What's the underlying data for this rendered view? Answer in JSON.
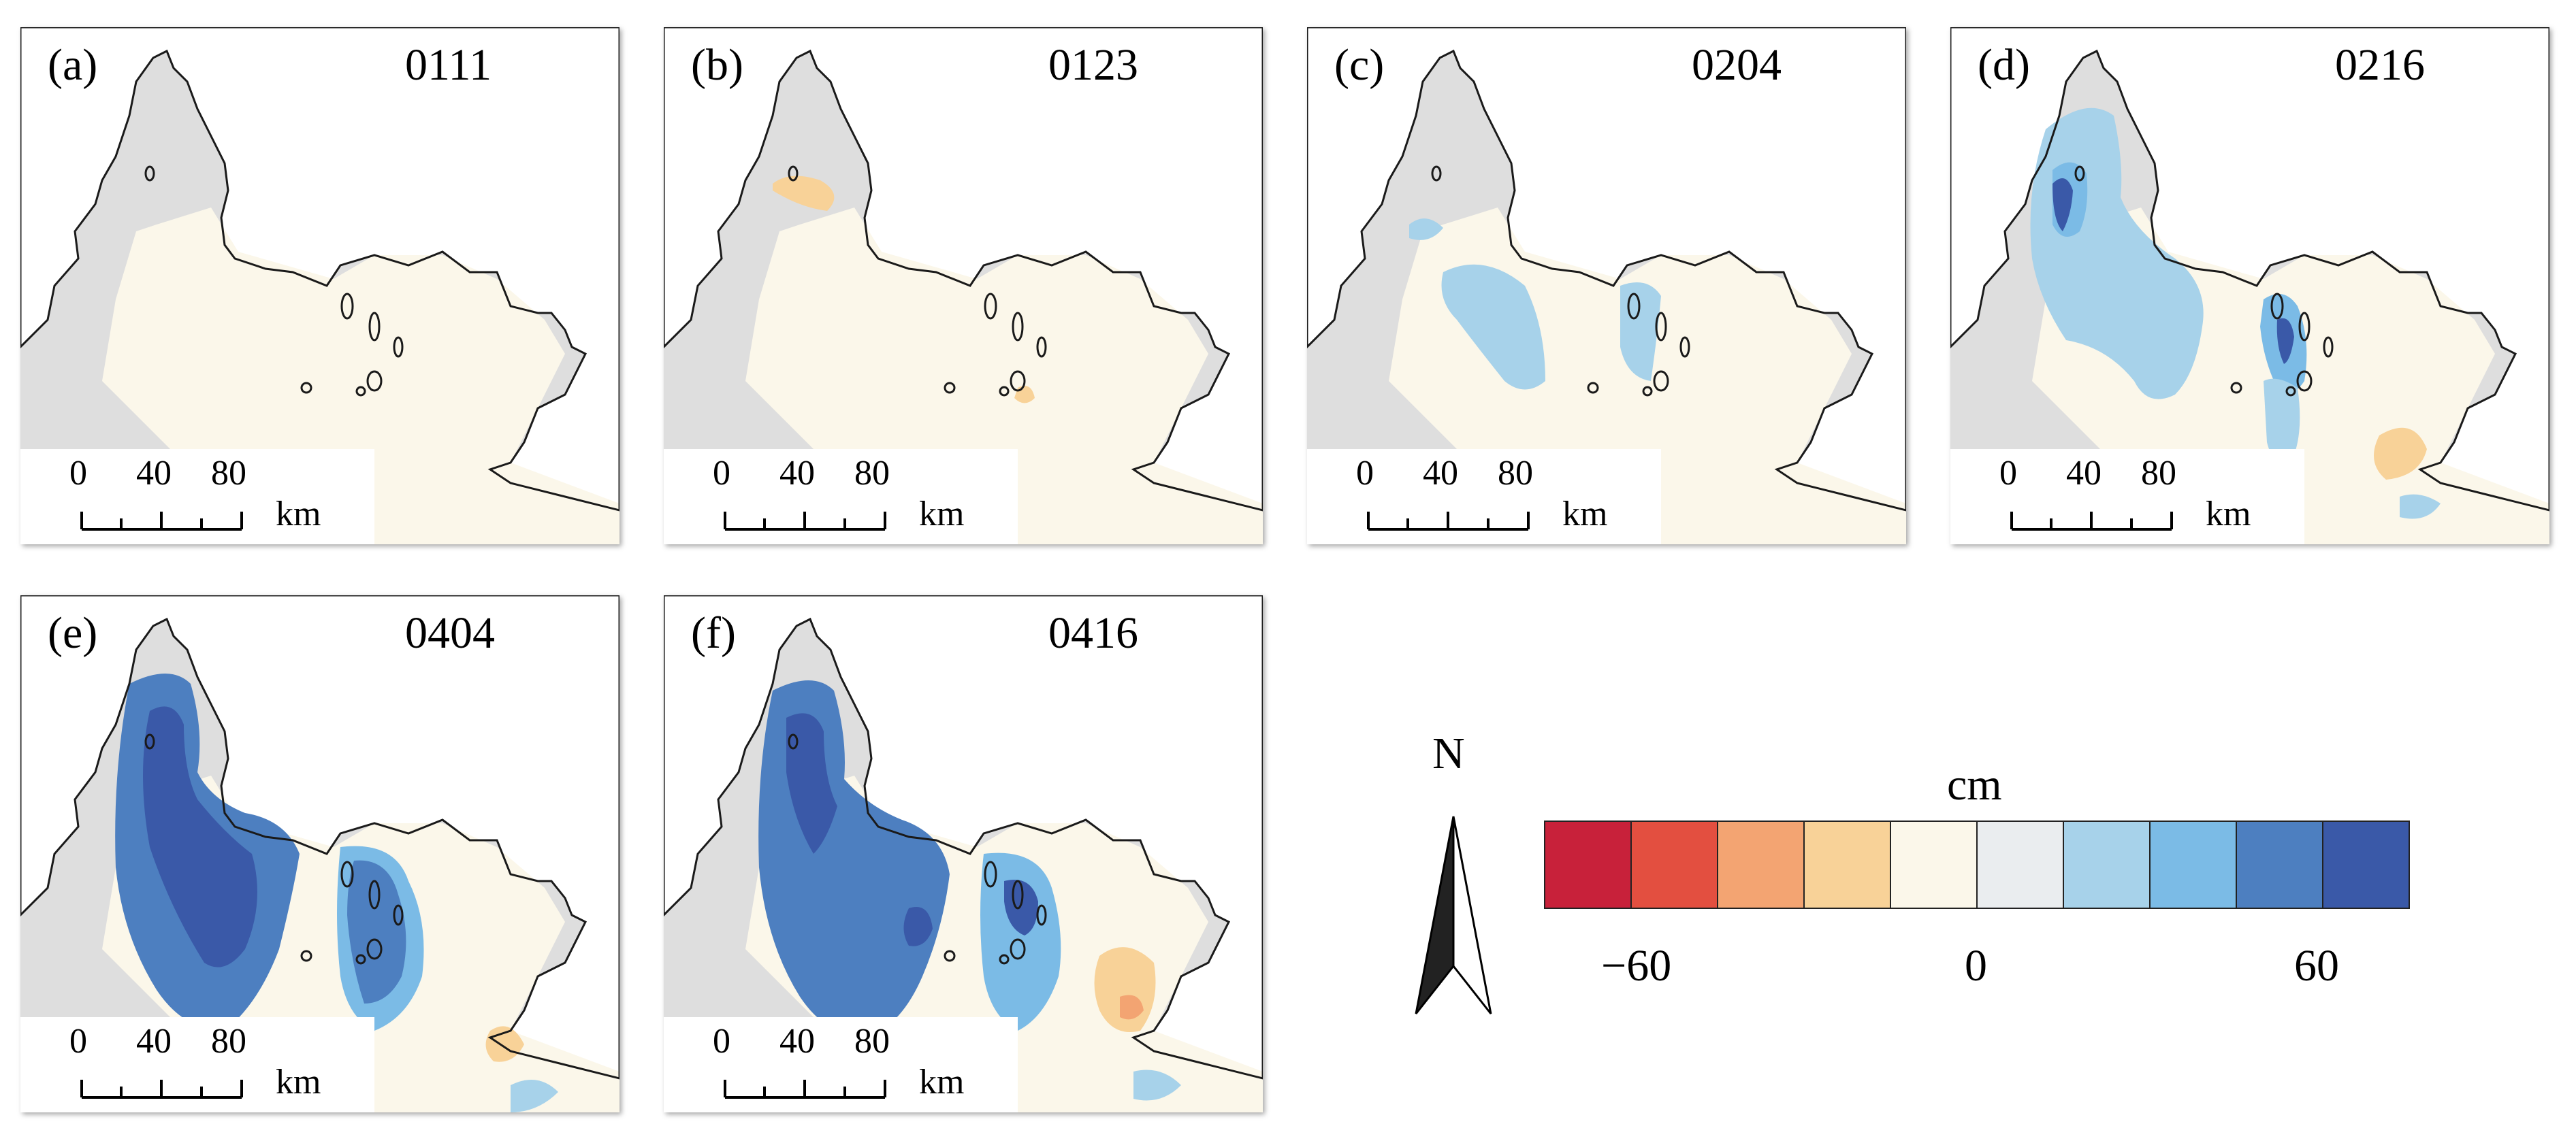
{
  "figure": {
    "panels": [
      {
        "label": "(a)",
        "date": "0111"
      },
      {
        "label": "(b)",
        "date": "0123"
      },
      {
        "label": "(c)",
        "date": "0204"
      },
      {
        "label": "(d)",
        "date": "0216"
      },
      {
        "label": "(e)",
        "date": "0404"
      },
      {
        "label": "(f)",
        "date": "0416"
      }
    ],
    "scale_bar": {
      "ticks": [
        "0",
        "40",
        "80"
      ],
      "unit": "km"
    },
    "north_arrow": {
      "letter": "N"
    },
    "legend": {
      "unit": "cm",
      "colors": [
        "#c8213a",
        "#e34f40",
        "#f3a472",
        "#f8d298",
        "#fbf7ea",
        "#eaedef",
        "#a7d2ea",
        "#7bbbe6",
        "#4d7fc0",
        "#3a59a8"
      ],
      "tick_labels": [
        "−60",
        "0",
        "60"
      ],
      "range": [
        -60,
        60
      ]
    },
    "map_colors": {
      "background": "#dedede",
      "land": "#ffffff",
      "coast": "#1a1a1a"
    }
  }
}
